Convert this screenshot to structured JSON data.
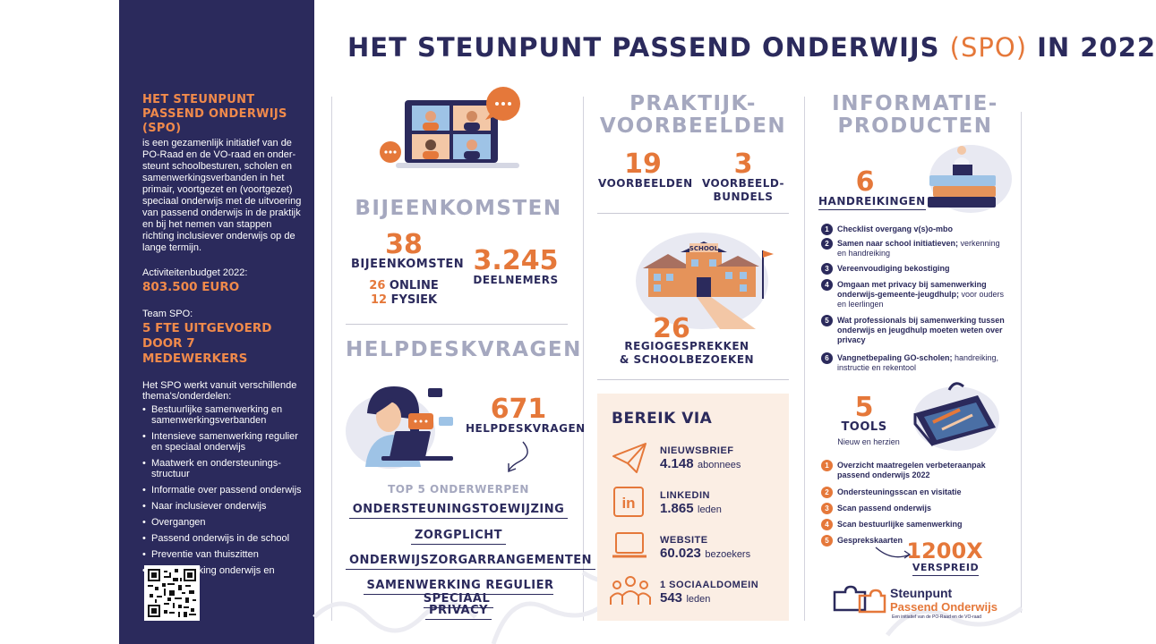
{
  "title": {
    "part1": "HET STEUNPUNT PASSEND ONDERWIJS",
    "highlight": "(SPO)",
    "part2": "IN 2022"
  },
  "sidebar": {
    "heading": "HET STEUNPUNT PASSEND ONDERWIJS (SPO)",
    "intro": "is een gezamenlijk initiatief van de PO-Raad en de VO-raad en onder-steunt schoolbesturen, scholen en samenwerkingsverbanden in het primair, voortgezet en (voortgezet) speciaal onderwijs met de uitvoering van passend onderwijs in de praktijk en bij het nemen van stappen richting inclusiever onderwijs op de lange termijn.",
    "budget_label": "Activiteitenbudget 2022:",
    "budget_value": "803.500 EURO",
    "team_label": "Team SPO:",
    "team_value": "5 FTE UITGEVOERD DOOR 7 MEDEWERKERS",
    "themes_label": "Het SPO werkt vanuit verschillende thema's/onderdelen:",
    "themes": [
      "Bestuurlijke samenwerking en samenwerkingsverbanden",
      "Intensieve samenwerking regulier en speciaal onderwijs",
      "Maatwerk en ondersteunings-structuur",
      "Informatie over passend onderwijs",
      "Naar inclusiever onderwijs",
      "Overgangen",
      "Passend onderwijs in de school",
      "Preventie van thuiszitten",
      "Samenwerking onderwijs en jeugdhulp"
    ]
  },
  "bijeenkomsten": {
    "title": "BIJEENKOMSTEN",
    "count": "38",
    "count_label": "BIJEENKOMSTEN",
    "online_num": "26",
    "online_label": "ONLINE",
    "fysiek_num": "12",
    "fysiek_label": "FYSIEK",
    "deelnemers": "3.245",
    "deelnemers_label": "DEELNEMERS"
  },
  "helpdesk": {
    "title": "HELPDESKVRAGEN",
    "count": "671",
    "count_label": "HELPDESKVRAGEN",
    "top_label": "TOP 5 ONDERWERPEN",
    "topics": [
      "ONDERSTEUNINGSTOEWIJZING",
      "ZORGPLICHT",
      "ONDERWIJSZORGARRANGEMENTEN",
      "SAMENWERKING REGULIER SPECIAAL",
      "PRIVACY"
    ]
  },
  "praktijk": {
    "title_line1": "PRAKTIJK-",
    "title_line2": "VOORBEELDEN",
    "voorbeelden_num": "19",
    "voorbeelden_label": "VOORBEELDEN",
    "bundels_num": "3",
    "bundels_label1": "VOORBEELD-",
    "bundels_label2": "BUNDELS",
    "school_sign": "SCHOOL",
    "regio_num": "26",
    "regio_label1": "REGIOGESPREKKEN",
    "regio_label2": "& SCHOOLBEZOEKEN"
  },
  "bereik": {
    "title": "BEREIK VIA",
    "channels": [
      {
        "name": "NIEUWSBRIEF",
        "value": "4.148",
        "unit": "abonnees",
        "icon": "paper-plane-icon"
      },
      {
        "name": "LINKEDIN",
        "value": "1.865",
        "unit": "leden",
        "icon": "linkedin-icon"
      },
      {
        "name": "WEBSITE",
        "value": "60.023",
        "unit": "bezoekers",
        "icon": "laptop-icon"
      },
      {
        "name": "1 SOCIAALDOMEIN",
        "value": "543",
        "unit": "leden",
        "icon": "people-icon"
      }
    ]
  },
  "informatie": {
    "title_line1": "INFORMATIE-",
    "title_line2": "PRODUCTEN",
    "handreikingen_num": "6",
    "handreikingen_label": "HANDREIKINGEN",
    "handreikingen": [
      {
        "n": "1",
        "bold": "Checklist overgang v(s)o-mbo",
        "rest": ""
      },
      {
        "n": "2",
        "bold": "Samen naar school initiatieven;",
        "rest": " verkenning en handreiking"
      },
      {
        "n": "3",
        "bold": "Vereenvoudiging bekostiging",
        "rest": ""
      },
      {
        "n": "4",
        "bold": "Omgaan met privacy bij samenwerking onderwijs-gemeente-jeugdhulp;",
        "rest": " voor ouders en leerlingen"
      },
      {
        "n": "5",
        "bold": "Wat professionals bij samenwerking tussen onderwijs en jeugdhulp moeten weten over privacy",
        "rest": ""
      },
      {
        "n": "6",
        "bold": "Vangnetbepaling GO-scholen;",
        "rest": " handreiking, instructie en rekentool"
      }
    ],
    "tools_num": "5",
    "tools_label": "TOOLS",
    "tools_sub": "Nieuw en herzien",
    "tools": [
      {
        "n": "1",
        "text": "Overzicht maatregelen verbeteraanpak passend onderwijs 2022"
      },
      {
        "n": "2",
        "text": "Ondersteuningsscan en visitatie"
      },
      {
        "n": "3",
        "text": "Scan passend onderwijs"
      },
      {
        "n": "4",
        "text": "Scan bestuurlijke samenwerking"
      },
      {
        "n": "5",
        "text": "Gesprekskaarten"
      }
    ],
    "spread_num": "1200X",
    "spread_label": "VERSPREID"
  },
  "logo": {
    "line1": "Steunpunt",
    "line2": "Passend Onderwijs",
    "tagline": "Een initiatief van de PO-Raad en de VO-raad"
  },
  "colors": {
    "navy": "#2b2a5c",
    "orange": "#e5783a",
    "grey": "#a5a8bf",
    "peach": "#fbeee4"
  }
}
